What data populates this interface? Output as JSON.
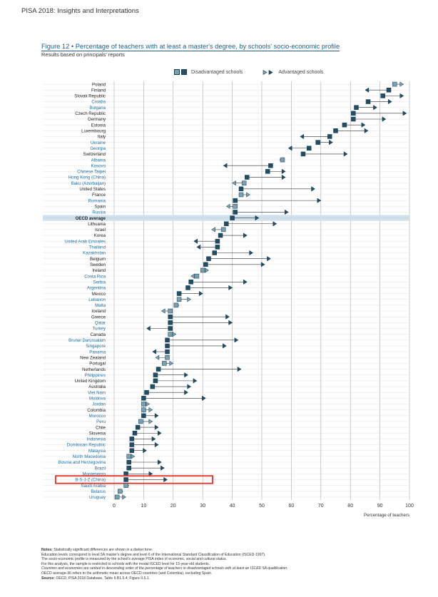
{
  "header": "PISA 2018: Insights and Interpretations",
  "figure_title": "Figure 12 • Percentage of teachers with at least a master's degree, by schools' socio-economic profile",
  "figure_subtitle": "Results based on principals' reports",
  "legend": {
    "disadvantaged": "Disadvantaged schools",
    "advantaged": "Advantaged schools"
  },
  "colors": {
    "marker_fill": "#78a0b3",
    "marker_dark": "#1f4e66",
    "oecd_band": "#cfe1ec",
    "highlight": "#e8413a",
    "blue_label": "#1e6fa8",
    "axis": "#444444"
  },
  "notes": {
    "n1_bold": "Notes:",
    "n1": "Statistically significant differences are shown in a darker tone.",
    "n2": "Education levels correspond to level 5A master's degree and level 6 of the International Standard Classification of Education (ISCED-1997).",
    "n3": "The socio-economic profile is measured by the school's average PISA index of economic, social and cultural status.",
    "n4": "For this analysis, the sample is restricted to schools with the modal ISCED level for 15-year-old students.",
    "n5": "Countries and economies are ranked in descending order of the percentage of teachers in disadvantaged schools with at least an ISCED 5A qualification.",
    "n6": "OECD average-36 refers to the arithmetic mean across OECD countries (and Colombia), excluding Spain.",
    "source_bold": "Source:",
    "source": "OECD, PISA 2018 Database, Table II.B1.5.4; Figure II.5.1."
  },
  "chart_data": {
    "type": "dot-arrow",
    "x_label": "Percentage of teachers",
    "x_ticks": [
      0,
      10,
      20,
      30,
      40,
      50,
      60,
      70,
      80,
      90,
      100
    ],
    "xlim": [
      0,
      100
    ],
    "highlight": "B-S-J-Z (China)",
    "highlight_color": "#e8413a",
    "rows": [
      {
        "name": "Poland",
        "dis": 95,
        "adv": 98,
        "blue": false
      },
      {
        "name": "Finland",
        "dis": 93,
        "adv": 85,
        "blue": false
      },
      {
        "name": "Slovak Republic",
        "dis": 91,
        "adv": 98,
        "blue": false
      },
      {
        "name": "Croatia",
        "dis": 86,
        "adv": 94,
        "blue": true
      },
      {
        "name": "Bulgaria",
        "dis": 82,
        "adv": 89,
        "blue": true
      },
      {
        "name": "Czech Republic",
        "dis": 81,
        "adv": 99,
        "blue": false
      },
      {
        "name": "Germany",
        "dis": 81,
        "adv": 92,
        "blue": false
      },
      {
        "name": "Estonia",
        "dis": 78,
        "adv": 85,
        "blue": false
      },
      {
        "name": "Luxembourg",
        "dis": 75,
        "adv": 86,
        "blue": false
      },
      {
        "name": "Italy",
        "dis": 73,
        "adv": 63,
        "blue": false
      },
      {
        "name": "Ukraine",
        "dis": 69,
        "adv": 74,
        "blue": true
      },
      {
        "name": "Georgia",
        "dis": 66,
        "adv": 59,
        "blue": true
      },
      {
        "name": "Switzerland",
        "dis": 64,
        "adv": 79,
        "blue": false
      },
      {
        "name": "Albania",
        "dis": 57,
        "adv": 56,
        "blue": true
      },
      {
        "name": "Kosovo",
        "dis": 53,
        "adv": 37,
        "blue": true
      },
      {
        "name": "Chinese Taipei",
        "dis": 52,
        "adv": 58,
        "blue": true
      },
      {
        "name": "Hong Kong (China)",
        "dis": 45,
        "adv": 58,
        "blue": true
      },
      {
        "name": "Baku (Azerbaijan)",
        "dis": 44,
        "adv": 40,
        "blue": true
      },
      {
        "name": "United States",
        "dis": 43,
        "adv": 68,
        "blue": false
      },
      {
        "name": "France",
        "dis": 43,
        "adv": 46,
        "blue": false
      },
      {
        "name": "Romania",
        "dis": 41,
        "adv": 70,
        "blue": true
      },
      {
        "name": "Spain",
        "dis": 41,
        "adv": 38,
        "blue": false
      },
      {
        "name": "Russia",
        "dis": 41,
        "adv": 59,
        "blue": true
      },
      {
        "name": "OECD average",
        "dis": 40,
        "adv": 49,
        "blue": false,
        "oecd": true
      },
      {
        "name": "Lithuania",
        "dis": 38,
        "adv": 55,
        "blue": false
      },
      {
        "name": "Israel",
        "dis": 37,
        "adv": 33,
        "blue": false
      },
      {
        "name": "Korea",
        "dis": 36,
        "adv": 45,
        "blue": false
      },
      {
        "name": "United Arab Emirates",
        "dis": 35,
        "adv": 27,
        "blue": true
      },
      {
        "name": "Thailand",
        "dis": 35,
        "adv": 28,
        "blue": true
      },
      {
        "name": "Kazakhstan",
        "dis": 34,
        "adv": 47,
        "blue": true
      },
      {
        "name": "Belgium",
        "dis": 32,
        "adv": 53,
        "blue": false
      },
      {
        "name": "Sweden",
        "dis": 31,
        "adv": 51,
        "blue": false
      },
      {
        "name": "Ireland",
        "dis": 30,
        "adv": 32,
        "blue": false
      },
      {
        "name": "Costa Rica",
        "dis": 28,
        "adv": 26,
        "blue": true
      },
      {
        "name": "Serbia",
        "dis": 26,
        "adv": 45,
        "blue": true
      },
      {
        "name": "Argentina",
        "dis": 25,
        "adv": 40,
        "blue": true
      },
      {
        "name": "Mexico",
        "dis": 22,
        "adv": 30,
        "blue": false
      },
      {
        "name": "Lebanon",
        "dis": 22,
        "adv": 26,
        "blue": true
      },
      {
        "name": "Malta",
        "dis": 21,
        "adv": 22,
        "blue": true
      },
      {
        "name": "Iceland",
        "dis": 19,
        "adv": 16,
        "blue": false
      },
      {
        "name": "Greece",
        "dis": 19,
        "adv": 39,
        "blue": false
      },
      {
        "name": "Qatar",
        "dis": 19,
        "adv": 40,
        "blue": true
      },
      {
        "name": "Turkey",
        "dis": 19,
        "adv": 11,
        "blue": true
      },
      {
        "name": "Canada",
        "dis": 19,
        "adv": 21,
        "blue": false
      },
      {
        "name": "Brunei Darussalam",
        "dis": 18,
        "adv": 42,
        "blue": true
      },
      {
        "name": "Singapore",
        "dis": 18,
        "adv": 38,
        "blue": true
      },
      {
        "name": "Panama",
        "dis": 18,
        "adv": 13,
        "blue": true
      },
      {
        "name": "New Zealand",
        "dis": 18,
        "adv": 14,
        "blue": false
      },
      {
        "name": "Portugal",
        "dis": 17,
        "adv": 20,
        "blue": false
      },
      {
        "name": "Netherlands",
        "dis": 15,
        "adv": 43,
        "blue": false
      },
      {
        "name": "Philippines",
        "dis": 14,
        "adv": 25,
        "blue": true
      },
      {
        "name": "United Kingdom",
        "dis": 14,
        "adv": 28,
        "blue": false
      },
      {
        "name": "Australia",
        "dis": 13,
        "adv": 26,
        "blue": false
      },
      {
        "name": "Viet Nam",
        "dis": 11,
        "adv": 25,
        "blue": true
      },
      {
        "name": "Moldova",
        "dis": 10,
        "adv": 31,
        "blue": true
      },
      {
        "name": "Jordan",
        "dis": 10,
        "adv": 12,
        "blue": true
      },
      {
        "name": "Colombia",
        "dis": 10,
        "adv": 13,
        "blue": false
      },
      {
        "name": "Morocco",
        "dis": 10,
        "adv": 15,
        "blue": true
      },
      {
        "name": "Peru",
        "dis": 9,
        "adv": 13,
        "blue": true
      },
      {
        "name": "Chile",
        "dis": 8,
        "adv": 15,
        "blue": false
      },
      {
        "name": "Slovenia",
        "dis": 7,
        "adv": 16,
        "blue": false
      },
      {
        "name": "Indonesia",
        "dis": 6,
        "adv": 14,
        "blue": true
      },
      {
        "name": "Dominican Republic",
        "dis": 6,
        "adv": 15,
        "blue": true
      },
      {
        "name": "Malaysia",
        "dis": 6,
        "adv": 11,
        "blue": true
      },
      {
        "name": "North Macedonia",
        "dis": 5,
        "adv": 7,
        "blue": true
      },
      {
        "name": "Bosnia and Herzegovina",
        "dis": 5,
        "adv": 16,
        "blue": true
      },
      {
        "name": "Brazil",
        "dis": 5,
        "adv": 17,
        "blue": true
      },
      {
        "name": "Montenegro",
        "dis": 4,
        "adv": 13,
        "blue": true
      },
      {
        "name": "B-S-J-Z (China)",
        "dis": 4,
        "adv": 18,
        "blue": true
      },
      {
        "name": "Saudi Arabia",
        "dis": 4,
        "adv": 5,
        "blue": true
      },
      {
        "name": "Belarus",
        "dis": 2,
        "adv": 3,
        "blue": true
      },
      {
        "name": "Uruguay",
        "dis": 1,
        "adv": 4,
        "blue": true
      }
    ]
  }
}
